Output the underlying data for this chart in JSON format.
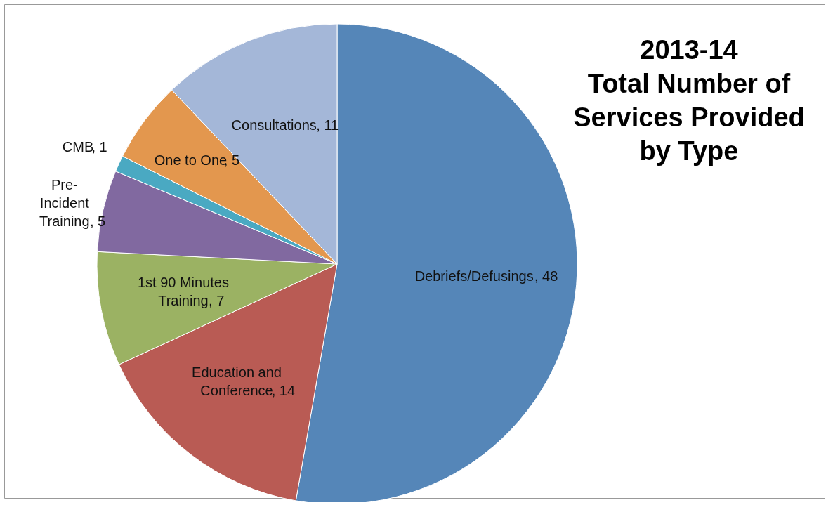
{
  "chart_data": {
    "type": "pie",
    "title": "2013-14 Total Number of Services Provided by Type",
    "categories": [
      "Debriefs/Defusings",
      "Education and Conference",
      "1st 90 Minutes Training",
      "Pre-Incident Training",
      "CMB",
      "One to One",
      "Consultations"
    ],
    "values": [
      48,
      14,
      7,
      5,
      1,
      5,
      11
    ],
    "colors": [
      "#5586b8",
      "#b95b54",
      "#9bb263",
      "#8169a0",
      "#4aa9c2",
      "#e3974e",
      "#a4b7d8"
    ],
    "value_labels": [
      ", 48",
      ", 14",
      ", 7",
      ", 5",
      ", 1",
      ", 5",
      ", 11"
    ],
    "legend": false
  }
}
